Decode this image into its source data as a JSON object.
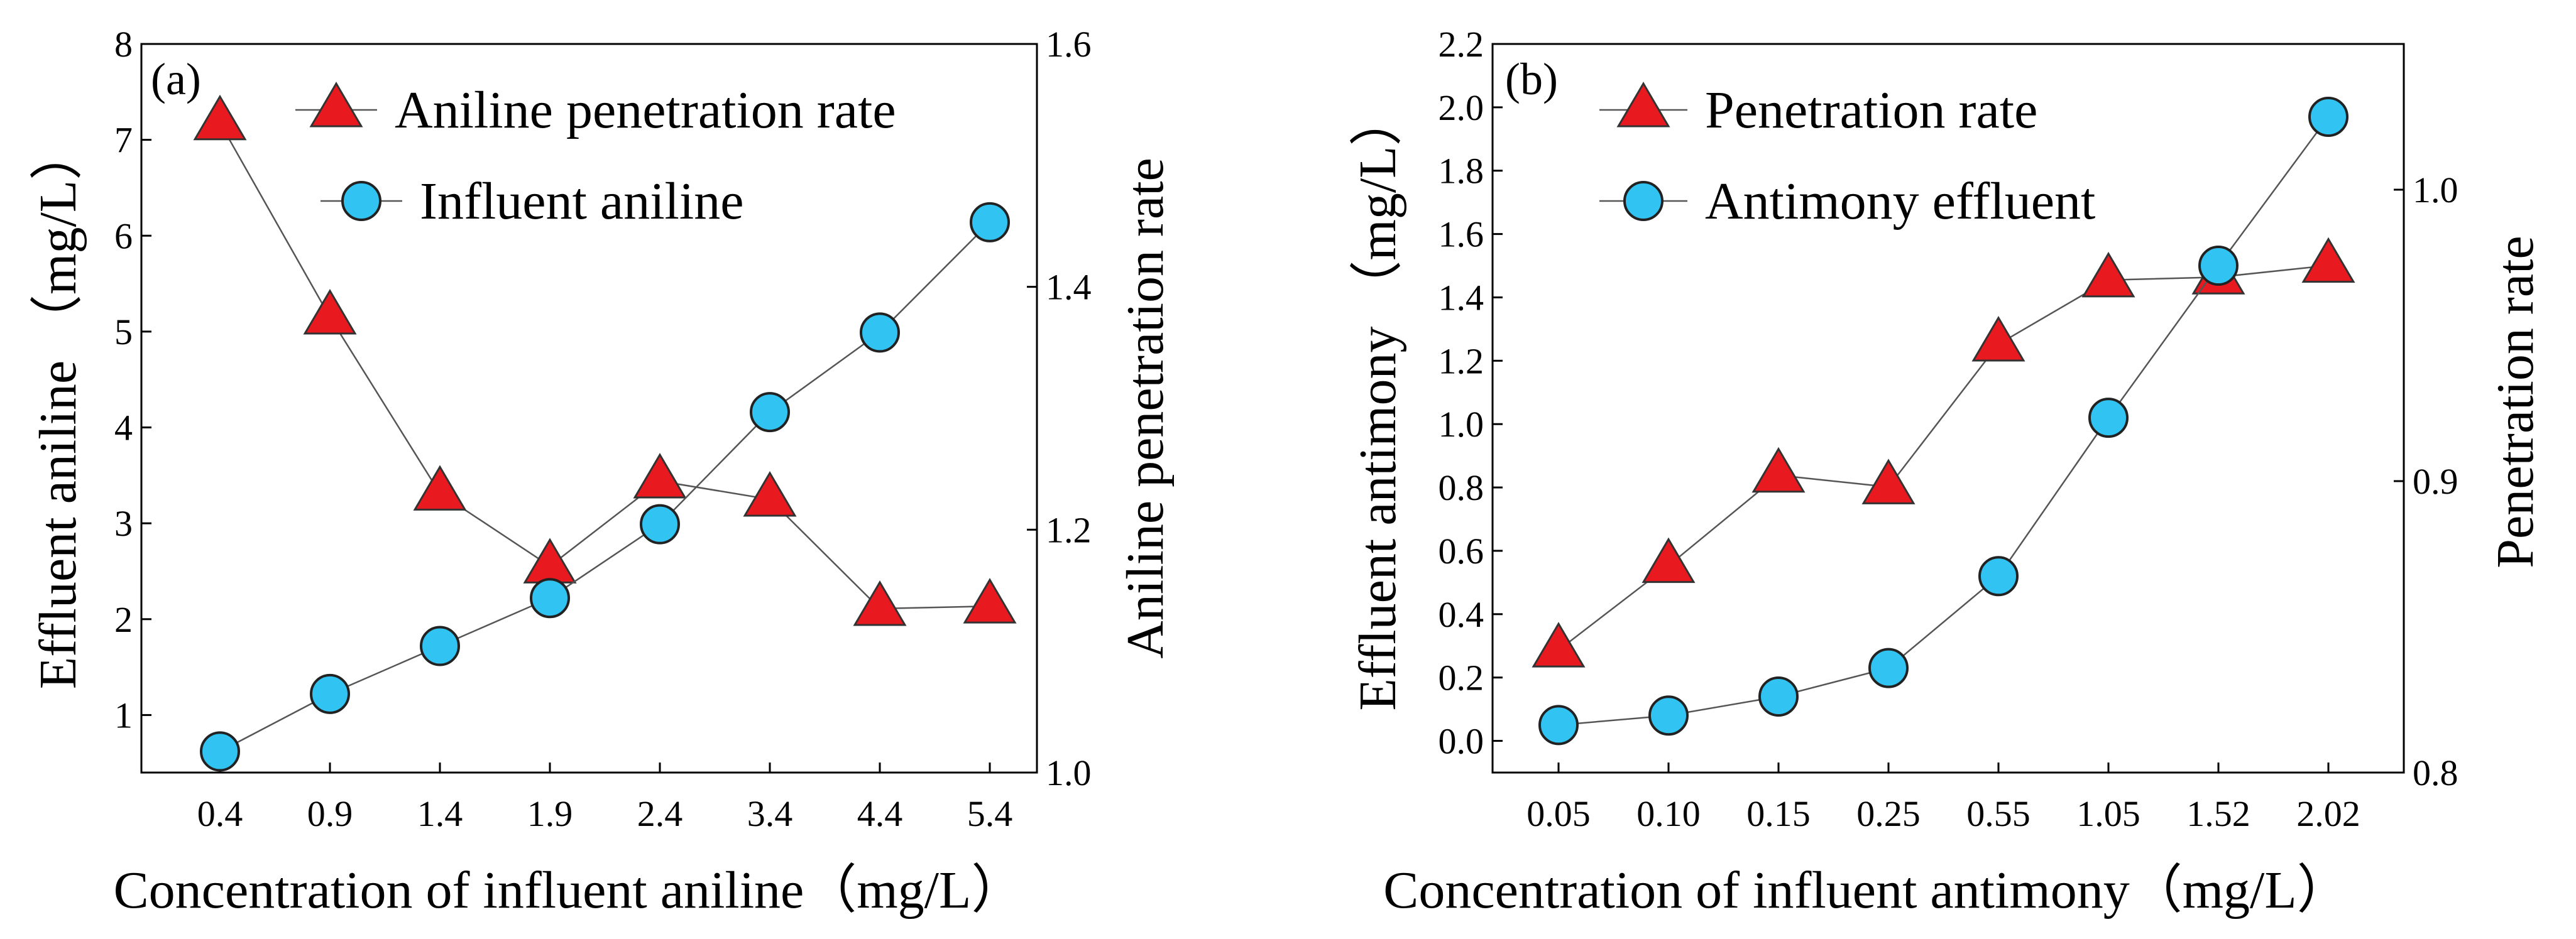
{
  "chart_data": [
    {
      "type": "line",
      "panel_label": "(a)",
      "categories": [
        "0.4",
        "0.9",
        "1.4",
        "1.9",
        "2.4",
        "3.4",
        "4.4",
        "5.4"
      ],
      "xlabel": "Concentration of influent aniline（mg/L）",
      "ylabel": "Effluent aniline （mg/L）",
      "y2label": "Aniline penetration rate",
      "ylim": [
        0.4,
        8
      ],
      "y2lim": [
        1.0,
        1.6
      ],
      "yticks": [
        "1",
        "2",
        "3",
        "4",
        "5",
        "6",
        "7",
        "8"
      ],
      "y2ticks": [
        "1.0",
        "1.2",
        "1.4",
        "1.6"
      ],
      "series": [
        {
          "name": "Aniline penetration rate",
          "axis": "right",
          "marker": "triangle",
          "color": "#e8191f",
          "values": [
            1.535,
            1.375,
            1.23,
            1.17,
            1.24,
            1.225,
            1.135,
            1.137
          ]
        },
        {
          "name": "Influent aniline",
          "axis": "left",
          "marker": "circle",
          "color": "#31c3f2",
          "values": [
            0.62,
            1.22,
            1.72,
            2.22,
            2.99,
            4.16,
            4.99,
            6.14
          ]
        }
      ]
    },
    {
      "type": "line",
      "panel_label": "(b)",
      "categories": [
        "0.05",
        "0.10",
        "0.15",
        "0.25",
        "0.55",
        "1.05",
        "1.52",
        "2.02"
      ],
      "xlabel": "Concentration of influent antimony（mg/L）",
      "ylabel": "Effluent antimony （mg/L）",
      "y2label": "Penetration rate",
      "ylim": [
        -0.1,
        2.2
      ],
      "y2lim": [
        0.8,
        1.05
      ],
      "yticks": [
        "0.0",
        "0.2",
        "0.4",
        "0.6",
        "0.8",
        "1.0",
        "1.2",
        "1.4",
        "1.6",
        "1.8",
        "2.0",
        "2.2"
      ],
      "y2ticks": [
        "0.8",
        "0.9",
        "1.0"
      ],
      "series": [
        {
          "name": "Penetration rate",
          "axis": "right",
          "marker": "triangle",
          "color": "#e8191f",
          "values": [
            0.842,
            0.871,
            0.902,
            0.898,
            0.947,
            0.969,
            0.97,
            0.974
          ]
        },
        {
          "name": "Antimony effluent",
          "axis": "left",
          "marker": "circle",
          "color": "#31c3f2",
          "values": [
            0.05,
            0.08,
            0.14,
            0.23,
            0.52,
            1.02,
            1.5,
            1.97
          ]
        }
      ]
    }
  ]
}
